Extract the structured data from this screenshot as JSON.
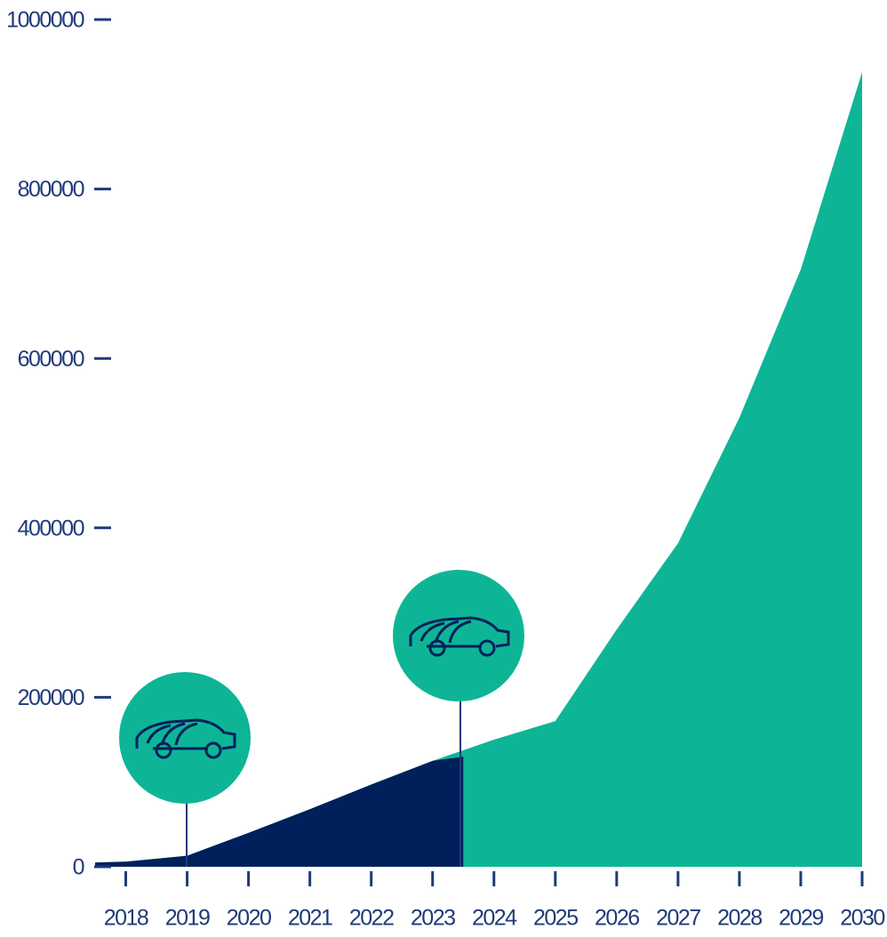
{
  "chart_data": {
    "type": "area",
    "xlim": [
      2017.5,
      2030
    ],
    "xticks": [
      2018,
      2019,
      2020,
      2021,
      2022,
      2023,
      2024,
      2025,
      2026,
      2027,
      2028,
      2029,
      2030
    ],
    "ylim": [
      0,
      1000000
    ],
    "yticks": [
      0,
      200000,
      400000,
      600000,
      800000,
      1000000
    ],
    "series": [
      {
        "color": "#0db596",
        "x": [
          2017.5,
          2018,
          2019,
          2020,
          2021,
          2022,
          2023,
          2024,
          2025,
          2026,
          2027,
          2028,
          2029,
          2030
        ],
        "values": [
          5000,
          6000,
          13000,
          40000,
          68000,
          97000,
          125000,
          150000,
          172000,
          280000,
          382000,
          530000,
          705000,
          938000
        ]
      },
      {
        "color": "#00205b",
        "x": [
          2017.5,
          2018,
          2019,
          2020,
          2021,
          2022,
          2023,
          2023.5
        ],
        "values": [
          5000,
          6000,
          13000,
          40000,
          68000,
          97000,
          125000,
          130000
        ]
      }
    ]
  }
}
